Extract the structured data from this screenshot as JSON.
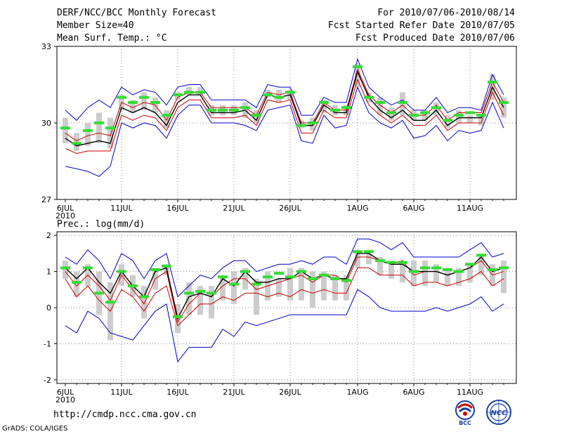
{
  "header": {
    "title": "DERF/NCC/BCC Monthly Forecast",
    "member_size": "Member Size=40",
    "variable": "Mean Surf. Temp.: °C",
    "period": "For 2010/07/06-2010/08/14",
    "started_refer": "Fcst Started Refer Date 2010/07/05",
    "produced": "Fcst Produced Date 2010/07/06"
  },
  "footer": {
    "url": "http://cmdp.ncc.cma.gov.cn",
    "grads": "GrADS: COLA/IGES",
    "logo_bcc": "BCC",
    "logo_ncc": "NCC"
  },
  "colors": {
    "ensemble_mean": "#000000",
    "bound": "#0000cc",
    "red": "#cc0000",
    "marker": "#33dd33",
    "box": "#cccccc"
  },
  "chart_data": [
    {
      "type": "line",
      "name": "temperature",
      "ylabel": "Mean Surf. Temp.: °C",
      "ylim": [
        27,
        33
      ],
      "yticks": [
        27,
        30,
        33
      ],
      "xticks": [
        "6JUL",
        "11JUL",
        "16JUL",
        "21JUL",
        "26JUL",
        "1AUG",
        "6AUG",
        "11AUG"
      ],
      "xtick_days": [
        0,
        5,
        10,
        15,
        20,
        26,
        31,
        36
      ],
      "year_label": "2010",
      "x_days": [
        0,
        1,
        2,
        3,
        4,
        5,
        6,
        7,
        8,
        9,
        10,
        11,
        12,
        13,
        14,
        15,
        16,
        17,
        18,
        19,
        20,
        21,
        22,
        23,
        24,
        25,
        26,
        27,
        28,
        29,
        30,
        31,
        32,
        33,
        34,
        35,
        36,
        37,
        38,
        39
      ],
      "series": [
        {
          "name": "max",
          "values": [
            30.5,
            30.1,
            30.6,
            30.9,
            30.6,
            31.4,
            31.1,
            31.3,
            31.2,
            30.7,
            31.4,
            31.5,
            31.5,
            30.9,
            30.9,
            30.9,
            30.9,
            30.6,
            31.5,
            31.4,
            31.4,
            30.3,
            30.3,
            31.0,
            30.8,
            30.8,
            32.5,
            31.4,
            31.0,
            30.7,
            30.9,
            30.5,
            30.5,
            31.0,
            30.4,
            30.6,
            30.6,
            30.5,
            31.9,
            31.1
          ]
        },
        {
          "name": "upper_red",
          "values": [
            29.6,
            29.3,
            29.5,
            29.6,
            29.5,
            30.8,
            30.6,
            30.8,
            30.7,
            30.1,
            31.0,
            31.2,
            31.2,
            30.6,
            30.6,
            30.6,
            30.6,
            30.3,
            31.2,
            31.1,
            31.2,
            30.0,
            30.0,
            30.8,
            30.5,
            30.5,
            32.1,
            31.1,
            30.7,
            30.4,
            30.7,
            30.3,
            30.3,
            30.7,
            30.1,
            30.4,
            30.4,
            30.4,
            31.6,
            30.8
          ]
        },
        {
          "name": "mean",
          "values": [
            29.4,
            29.1,
            29.2,
            29.3,
            29.2,
            30.6,
            30.4,
            30.6,
            30.4,
            29.9,
            30.8,
            31.1,
            31.1,
            30.4,
            30.4,
            30.4,
            30.5,
            30.1,
            31.1,
            31.0,
            31.1,
            29.9,
            29.9,
            30.7,
            30.4,
            30.4,
            32.0,
            31.0,
            30.5,
            30.2,
            30.5,
            30.1,
            30.1,
            30.5,
            29.9,
            30.2,
            30.2,
            30.2,
            31.4,
            30.6
          ]
        },
        {
          "name": "lower_red",
          "values": [
            29.0,
            28.8,
            28.9,
            28.9,
            28.9,
            30.3,
            30.1,
            30.3,
            30.2,
            29.7,
            30.6,
            30.9,
            30.9,
            30.2,
            30.2,
            30.2,
            30.3,
            29.9,
            30.9,
            30.8,
            30.9,
            29.6,
            29.6,
            30.5,
            30.2,
            30.2,
            31.7,
            30.7,
            30.3,
            30.0,
            30.3,
            29.9,
            29.9,
            30.3,
            29.7,
            30.0,
            30.0,
            30.0,
            31.2,
            30.3
          ]
        },
        {
          "name": "min",
          "values": [
            28.3,
            28.2,
            28.1,
            27.9,
            28.3,
            30.0,
            29.8,
            30.0,
            29.9,
            29.4,
            30.3,
            30.7,
            30.7,
            30.0,
            30.0,
            30.0,
            29.9,
            29.7,
            30.5,
            30.6,
            30.7,
            29.3,
            29.2,
            30.3,
            29.8,
            29.9,
            31.4,
            30.4,
            30.0,
            29.8,
            30.1,
            29.4,
            29.5,
            29.9,
            29.3,
            29.7,
            29.6,
            29.7,
            30.8,
            29.8
          ]
        }
      ],
      "box_low": [
        29.2,
        28.9,
        29.1,
        29.2,
        29.0,
        30.5,
        30.4,
        30.5,
        30.4,
        29.8,
        30.9,
        31.1,
        31.1,
        30.3,
        30.3,
        30.3,
        30.2,
        30.0,
        31.0,
        30.8,
        30.9,
        29.8,
        29.7,
        30.4,
        30.3,
        30.3,
        31.4,
        30.8,
        30.3,
        30.1,
        30.3,
        30.1,
        30.1,
        30.3,
        29.8,
        30.0,
        30.0,
        29.9,
        30.9,
        30.2
      ],
      "box_high": [
        30.2,
        29.6,
        30.0,
        30.4,
        30.2,
        31.1,
        30.9,
        31.2,
        31.0,
        30.5,
        31.2,
        31.4,
        31.4,
        30.7,
        30.7,
        30.7,
        30.8,
        30.5,
        31.3,
        31.3,
        31.3,
        30.1,
        30.2,
        30.9,
        30.7,
        30.7,
        32.3,
        31.2,
        31.0,
        30.6,
        31.2,
        30.5,
        30.5,
        30.8,
        30.3,
        30.5,
        30.3,
        30.3,
        31.9,
        31.0
      ],
      "markers": [
        29.8,
        29.2,
        29.7,
        30.0,
        29.8,
        31.0,
        30.8,
        31.0,
        30.8,
        30.3,
        31.1,
        31.2,
        31.2,
        30.5,
        30.5,
        30.5,
        30.6,
        30.3,
        31.1,
        31.0,
        31.2,
        29.9,
        30.0,
        30.8,
        30.5,
        30.6,
        32.2,
        31.0,
        30.8,
        30.4,
        30.8,
        30.3,
        30.4,
        30.6,
        30.1,
        30.3,
        30.4,
        30.3,
        31.6,
        30.8
      ]
    },
    {
      "type": "line",
      "name": "precipitation",
      "ylabel": "Prec.: log(mm/d)",
      "ylim": [
        -2.1,
        2.1
      ],
      "yticks": [
        -2,
        -1,
        0,
        1,
        2
      ],
      "xticks": [
        "6JUL",
        "11JUL",
        "16JUL",
        "21JUL",
        "26JUL",
        "1AUG",
        "6AUG",
        "11AUG"
      ],
      "xtick_days": [
        0,
        5,
        10,
        15,
        20,
        26,
        31,
        36
      ],
      "year_label": "2010",
      "x_days": [
        0,
        1,
        2,
        3,
        4,
        5,
        6,
        7,
        8,
        9,
        10,
        11,
        12,
        13,
        14,
        15,
        16,
        17,
        18,
        19,
        20,
        21,
        22,
        23,
        24,
        25,
        26,
        27,
        28,
        29,
        30,
        31,
        32,
        33,
        34,
        35,
        36,
        37,
        38,
        39
      ],
      "series": [
        {
          "name": "max",
          "values": [
            1.4,
            1.2,
            1.6,
            1.3,
            0.8,
            1.5,
            1.3,
            0.8,
            1.3,
            1.5,
            0.3,
            0.6,
            0.9,
            0.8,
            1.1,
            1.3,
            1.3,
            1.0,
            1.1,
            1.2,
            1.2,
            1.3,
            1.2,
            1.4,
            1.4,
            1.2,
            1.9,
            1.9,
            1.8,
            1.6,
            1.8,
            1.4,
            1.4,
            1.4,
            1.4,
            1.4,
            1.6,
            1.8,
            1.4,
            1.5
          ]
        },
        {
          "name": "upper_red",
          "values": [
            1.0,
            0.6,
            0.9,
            0.6,
            0.2,
            0.9,
            0.5,
            0.1,
            0.8,
            1.0,
            -0.4,
            0.1,
            0.4,
            0.3,
            0.6,
            0.8,
            0.8,
            0.5,
            0.6,
            0.7,
            0.8,
            0.9,
            0.7,
            0.9,
            0.9,
            0.7,
            1.4,
            1.4,
            1.3,
            1.2,
            1.3,
            0.9,
            1.0,
            1.0,
            0.9,
            1.0,
            1.1,
            1.3,
            0.9,
            1.0
          ]
        },
        {
          "name": "mean",
          "values": [
            1.1,
            0.8,
            1.1,
            0.7,
            0.4,
            1.0,
            0.6,
            0.3,
            1.0,
            1.1,
            -0.3,
            0.3,
            0.4,
            0.3,
            0.8,
            0.6,
            1.0,
            0.7,
            0.7,
            0.8,
            0.8,
            1.0,
            0.8,
            0.9,
            0.8,
            0.8,
            1.5,
            1.5,
            1.3,
            1.2,
            1.2,
            1.0,
            1.0,
            1.0,
            0.9,
            1.0,
            1.1,
            1.4,
            1.0,
            1.1
          ]
        },
        {
          "name": "lower_red",
          "values": [
            0.8,
            0.3,
            0.6,
            0.2,
            -0.1,
            0.5,
            0.3,
            -0.1,
            0.4,
            0.6,
            -0.5,
            -0.2,
            0.1,
            0.1,
            0.3,
            0.2,
            0.4,
            0.4,
            0.3,
            0.4,
            0.3,
            0.5,
            0.4,
            0.5,
            0.4,
            0.4,
            1.1,
            1.1,
            0.9,
            0.9,
            0.9,
            0.6,
            0.7,
            0.7,
            0.6,
            0.7,
            0.8,
            1.0,
            0.6,
            0.8
          ]
        },
        {
          "name": "min",
          "values": [
            -0.5,
            -0.7,
            -0.1,
            -0.3,
            -0.7,
            -0.8,
            -0.9,
            -0.5,
            -0.1,
            0.1,
            -1.5,
            -1.1,
            -1.1,
            -1.1,
            -0.6,
            -0.8,
            -0.4,
            -0.5,
            -0.4,
            -0.3,
            -0.2,
            -0.2,
            -0.2,
            -0.2,
            -0.2,
            -0.2,
            0.5,
            0.3,
            0.0,
            -0.1,
            -0.1,
            -0.1,
            -0.1,
            0.0,
            -0.1,
            0.0,
            0.1,
            0.3,
            -0.1,
            0.1
          ]
        }
      ],
      "box_low": [
        0.8,
        0.3,
        0.6,
        -0.2,
        -0.9,
        0.6,
        0.3,
        -0.3,
        0.5,
        0.9,
        -0.7,
        -0.2,
        -0.2,
        -0.3,
        0.2,
        0.1,
        0.5,
        -0.2,
        0.2,
        0.3,
        0.2,
        0.2,
        0.0,
        0.2,
        0.2,
        0.2,
        1.1,
        1.2,
        0.9,
        0.8,
        0.7,
        0.6,
        0.6,
        0.7,
        0.6,
        0.6,
        0.7,
        0.9,
        0.6,
        0.4
      ],
      "box_high": [
        1.3,
        1.0,
        1.2,
        1.0,
        0.7,
        1.2,
        0.9,
        0.6,
        1.1,
        1.2,
        0.1,
        0.7,
        0.6,
        0.6,
        0.9,
        1.0,
        1.1,
        0.8,
        1.0,
        0.8,
        1.1,
        1.1,
        1.0,
        1.0,
        0.9,
        0.9,
        1.6,
        1.6,
        1.4,
        1.3,
        1.2,
        1.3,
        1.3,
        1.2,
        1.1,
        1.1,
        1.2,
        1.5,
        1.2,
        1.3
      ],
      "markers": [
        1.1,
        0.7,
        1.1,
        0.4,
        0.15,
        1.0,
        0.6,
        0.3,
        1.05,
        1.15,
        -0.25,
        0.4,
        0.45,
        0.4,
        0.85,
        0.65,
        1.0,
        0.65,
        0.85,
        0.95,
        0.85,
        1.0,
        0.8,
        0.9,
        0.8,
        0.75,
        1.55,
        1.55,
        1.3,
        1.25,
        1.25,
        1.0,
        1.1,
        1.1,
        1.05,
        1.0,
        1.2,
        1.45,
        1.05,
        1.1
      ]
    }
  ]
}
